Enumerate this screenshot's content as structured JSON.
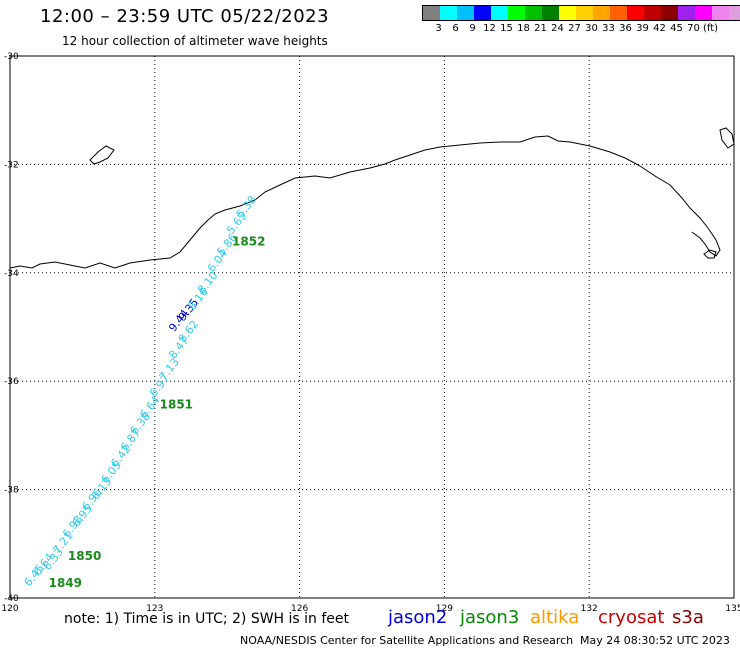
{
  "title": "12:00 – 23:59 UTC 05/22/2023",
  "subtitle": "12 hour collection of altimeter wave heights",
  "scale": {
    "colors": [
      "#808080",
      "#00ffff",
      "#00bfff",
      "#0000ff",
      "#00ffff",
      "#00ff00",
      "#00c000",
      "#008000",
      "#ffff00",
      "#ffd000",
      "#ffa500",
      "#ff6000",
      "#ff0000",
      "#c00000",
      "#8b0000",
      "#a020f0",
      "#ff00ff",
      "#ee82ee",
      "#dda0dd",
      "#000000"
    ],
    "labels": [
      "3",
      "6",
      "9",
      "12",
      "15",
      "18",
      "21",
      "24",
      "27",
      "30",
      "33",
      "36",
      "39",
      "42",
      "45",
      "70",
      "(ft)"
    ]
  },
  "lat_labels": [
    "-30",
    "-32",
    "-34",
    "-36",
    "-38",
    "-40"
  ],
  "lon_labels": [
    "120",
    "123",
    "126",
    "129",
    "132",
    "135"
  ],
  "map_data": {
    "lon_range": [
      120,
      135
    ],
    "lat_range": [
      -40,
      -30
    ],
    "green_times": [
      {
        "text": "1852",
        "lon": 124.6,
        "lat": -33.5
      },
      {
        "text": "1851",
        "lon": 123.1,
        "lat": -36.5
      },
      {
        "text": "1850",
        "lon": 121.2,
        "lat": -39.3
      },
      {
        "text": "1849",
        "lon": 120.8,
        "lat": -39.8
      }
    ],
    "swh_points": [
      {
        "text": "9.35",
        "lon": 123.6,
        "lat": -34.9,
        "color": "#0000cc"
      },
      {
        "text": "9.44",
        "lon": 123.4,
        "lat": -35.1,
        "color": "#0000cc"
      },
      {
        "text": "6.45",
        "lon": 120.4,
        "lat": -39.8,
        "color": "#33ccee"
      },
      {
        "text": "6.64",
        "lon": 120.6,
        "lat": -39.6,
        "color": "#33ccee"
      },
      {
        "text": "6.33",
        "lon": 120.8,
        "lat": -39.5,
        "color": "#33ccee"
      },
      {
        "text": "7.21",
        "lon": 121.0,
        "lat": -39.2,
        "color": "#33ccee"
      },
      {
        "text": "6.98",
        "lon": 121.2,
        "lat": -38.9,
        "color": "#33ccee"
      },
      {
        "text": "6.95",
        "lon": 121.4,
        "lat": -38.7,
        "color": "#33ccee"
      },
      {
        "text": "6.96",
        "lon": 121.6,
        "lat": -38.4,
        "color": "#33ccee"
      },
      {
        "text": "6.13",
        "lon": 121.8,
        "lat": -38.2,
        "color": "#33ccee"
      },
      {
        "text": "6.05",
        "lon": 122.0,
        "lat": -37.9,
        "color": "#33ccee"
      },
      {
        "text": "6.42",
        "lon": 122.2,
        "lat": -37.6,
        "color": "#33ccee"
      },
      {
        "text": "6.87",
        "lon": 122.4,
        "lat": -37.3,
        "color": "#33ccee"
      },
      {
        "text": "6.38",
        "lon": 122.6,
        "lat": -37.0,
        "color": "#33ccee"
      },
      {
        "text": "6.64",
        "lon": 122.8,
        "lat": -36.7,
        "color": "#33ccee"
      },
      {
        "text": "6.97",
        "lon": 123.0,
        "lat": -36.3,
        "color": "#33ccee"
      },
      {
        "text": "7.13",
        "lon": 123.2,
        "lat": -36.0,
        "color": "#33ccee"
      },
      {
        "text": "8.47",
        "lon": 123.4,
        "lat": -35.6,
        "color": "#33ccee"
      },
      {
        "text": "8.62",
        "lon": 123.6,
        "lat": -35.3,
        "color": "#33ccee"
      },
      {
        "text": "8.16",
        "lon": 123.8,
        "lat": -34.7,
        "color": "#33ccee"
      },
      {
        "text": "8.10",
        "lon": 124.0,
        "lat": -34.4,
        "color": "#33ccee"
      },
      {
        "text": "6.04",
        "lon": 124.2,
        "lat": -34.0,
        "color": "#33ccee"
      },
      {
        "text": "5.86",
        "lon": 124.4,
        "lat": -33.7,
        "color": "#33ccee"
      },
      {
        "text": "5.65",
        "lon": 124.6,
        "lat": -33.3,
        "color": "#33ccee"
      },
      {
        "text": "5.38",
        "lon": 124.8,
        "lat": -33.0,
        "color": "#33ccee"
      }
    ]
  },
  "note": "note:  1) Time is in UTC;  2) SWH is in feet",
  "missions": [
    {
      "name": "jason2",
      "color": "#0000dd"
    },
    {
      "name": "jason3",
      "color": "#008800"
    },
    {
      "name": "altika",
      "color": "#ff9900"
    },
    {
      "name": "cryosat",
      "color": "#cc0000"
    },
    {
      "name": "s3a",
      "color": "#880000"
    }
  ],
  "credit": "NOAA/NESDIS Center for Satellite Applications and Research",
  "generated": "May 24 08:30:52 UTC 2023"
}
